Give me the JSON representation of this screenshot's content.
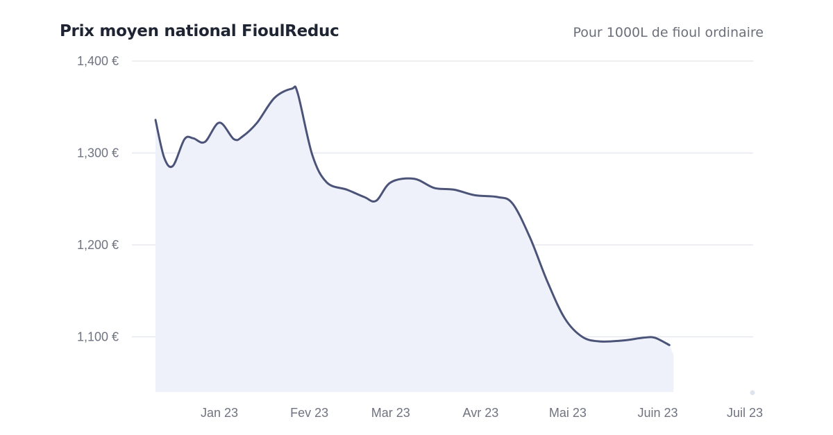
{
  "chart_data": {
    "type": "area",
    "title": "Prix moyen national FioulReduc",
    "subtitle": "Pour 1000L de fioul ordinaire",
    "xlabel": "",
    "ylabel": "",
    "x_ticks": [
      "Jan 23",
      "Fev 23",
      "Mar 23",
      "Avr 23",
      "Mai 23",
      "Juin 23",
      "Juil 23"
    ],
    "y_ticks": [
      "1,100 €",
      "1,200 €",
      "1,300 €",
      "1,400 €"
    ],
    "ylim": [
      1040,
      1400
    ],
    "xlim": [
      "2022-12-09",
      "2023-07-01"
    ],
    "grid": true,
    "series": [
      {
        "color": "#4b5478",
        "fill": "#eef1f9",
        "points": [
          {
            "date": "2022-12-10",
            "value": 1336
          },
          {
            "date": "2022-12-13",
            "value": 1295
          },
          {
            "date": "2022-12-16",
            "value": 1286
          },
          {
            "date": "2022-12-20",
            "value": 1315
          },
          {
            "date": "2022-12-23",
            "value": 1316
          },
          {
            "date": "2022-12-27",
            "value": 1312
          },
          {
            "date": "2023-01-01",
            "value": 1333
          },
          {
            "date": "2023-01-06",
            "value": 1315
          },
          {
            "date": "2023-01-09",
            "value": 1318
          },
          {
            "date": "2023-01-14",
            "value": 1333
          },
          {
            "date": "2023-01-20",
            "value": 1360
          },
          {
            "date": "2023-01-26",
            "value": 1370
          },
          {
            "date": "2023-01-28",
            "value": 1365
          },
          {
            "date": "2023-02-02",
            "value": 1298
          },
          {
            "date": "2023-02-07",
            "value": 1268
          },
          {
            "date": "2023-02-14",
            "value": 1260
          },
          {
            "date": "2023-02-20",
            "value": 1252
          },
          {
            "date": "2023-02-24",
            "value": 1248
          },
          {
            "date": "2023-03-01",
            "value": 1268
          },
          {
            "date": "2023-03-09",
            "value": 1272
          },
          {
            "date": "2023-03-16",
            "value": 1262
          },
          {
            "date": "2023-03-23",
            "value": 1260
          },
          {
            "date": "2023-03-30",
            "value": 1254
          },
          {
            "date": "2023-04-07",
            "value": 1252
          },
          {
            "date": "2023-04-12",
            "value": 1245
          },
          {
            "date": "2023-04-18",
            "value": 1208
          },
          {
            "date": "2023-04-24",
            "value": 1160
          },
          {
            "date": "2023-04-30",
            "value": 1120
          },
          {
            "date": "2023-05-06",
            "value": 1100
          },
          {
            "date": "2023-05-12",
            "value": 1095
          },
          {
            "date": "2023-05-20",
            "value": 1096
          },
          {
            "date": "2023-05-27",
            "value": 1099
          },
          {
            "date": "2023-05-31",
            "value": 1099
          },
          {
            "date": "2023-06-05",
            "value": 1091
          }
        ]
      }
    ]
  }
}
